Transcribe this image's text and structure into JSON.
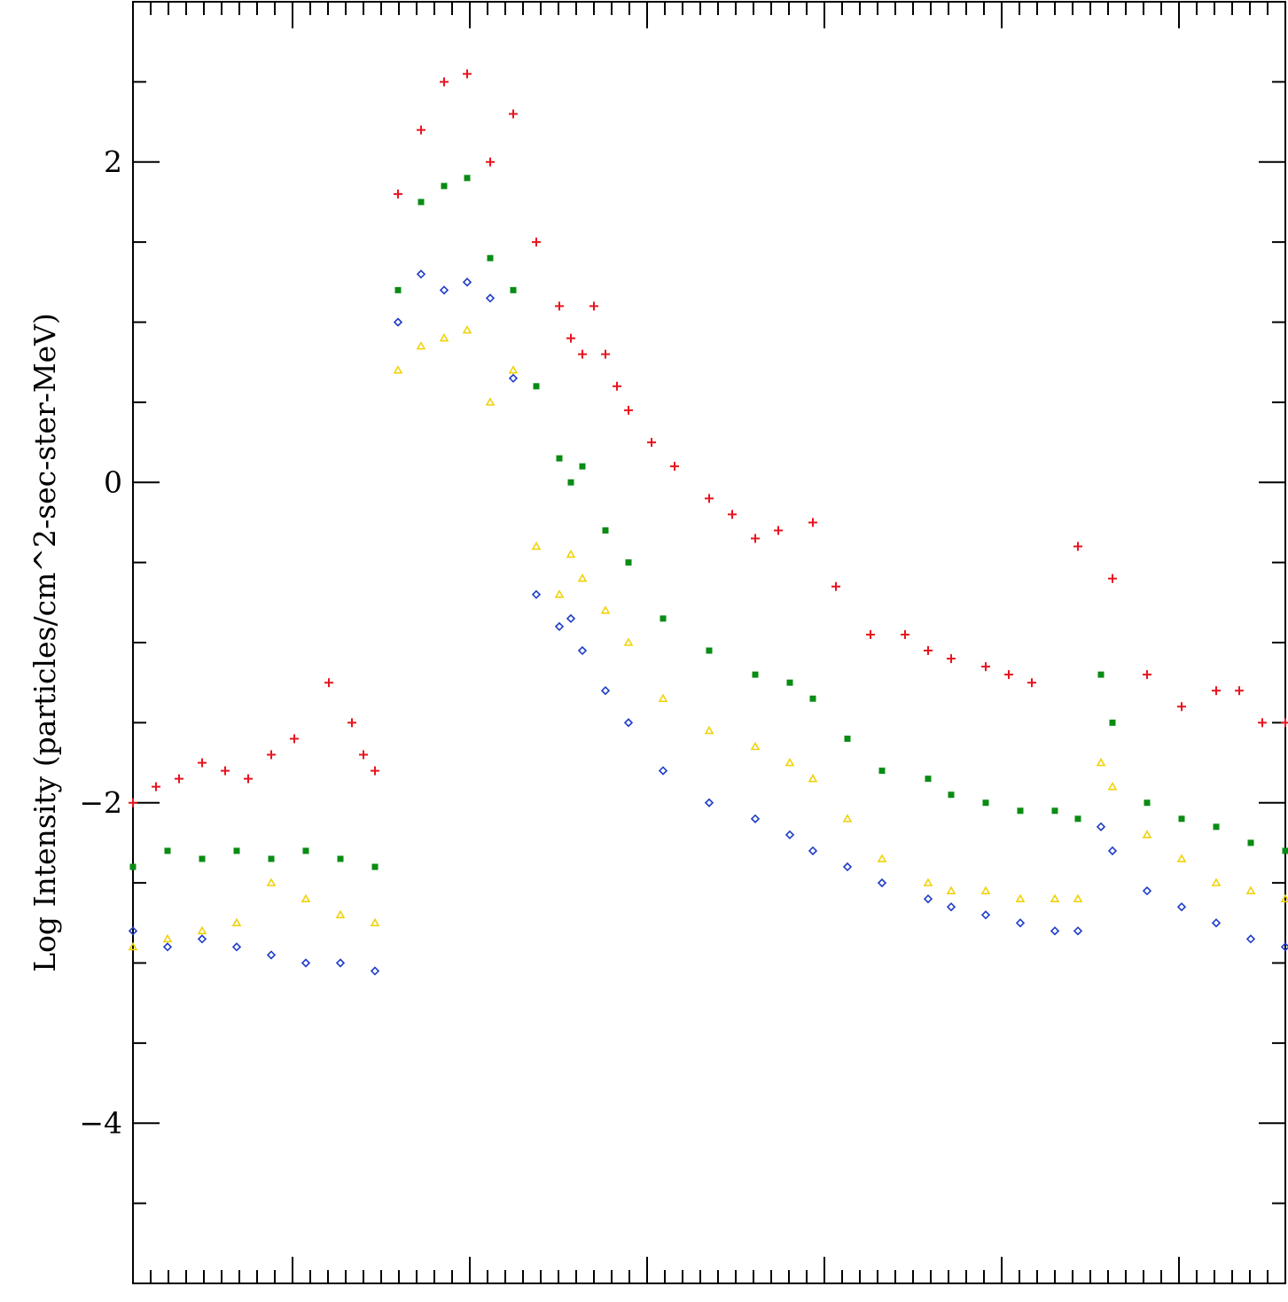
{
  "chart_data": {
    "type": "scatter",
    "ylabel": "Log Intensity (particles/cm^2-sec-ster-MeV)",
    "xlabel": "",
    "title": "",
    "ylim": [
      -5,
      3
    ],
    "xlim": [
      0,
      1
    ],
    "grid": false,
    "y_tick_labels": [
      {
        "value": 2,
        "label": "2"
      },
      {
        "value": 0,
        "label": "0"
      },
      {
        "value": -2,
        "label": "-2"
      },
      {
        "value": -4,
        "label": "-4"
      }
    ],
    "colors": {
      "series_1": "#e8141e",
      "series_2": "#0a8c14",
      "series_3": "#f0d20a",
      "series_4": "#1e3cc8"
    },
    "series": [
      {
        "key": "series_1",
        "marker": "plus",
        "x": [
          0.0,
          0.02,
          0.04,
          0.06,
          0.08,
          0.1,
          0.12,
          0.14,
          0.17,
          0.19,
          0.2,
          0.21,
          0.23,
          0.25,
          0.27,
          0.29,
          0.31,
          0.33,
          0.35,
          0.37,
          0.38,
          0.39,
          0.4,
          0.41,
          0.42,
          0.43,
          0.45,
          0.47,
          0.5,
          0.52,
          0.54,
          0.56,
          0.59,
          0.61,
          0.64,
          0.67,
          0.69,
          0.71,
          0.74,
          0.76,
          0.78,
          0.82,
          0.85,
          0.88,
          0.91,
          0.94,
          0.96,
          0.98,
          1.0
        ],
        "y": [
          -2.0,
          -1.9,
          -1.85,
          -1.75,
          -1.8,
          -1.85,
          -1.7,
          -1.6,
          -1.25,
          -1.5,
          -1.7,
          -1.8,
          1.8,
          2.2,
          2.5,
          2.55,
          2.0,
          2.3,
          1.5,
          1.1,
          0.9,
          0.8,
          1.1,
          0.8,
          0.6,
          0.45,
          0.25,
          0.1,
          -0.1,
          -0.2,
          -0.35,
          -0.3,
          -0.25,
          -0.65,
          -0.95,
          -0.95,
          -1.05,
          -1.1,
          -1.15,
          -1.2,
          -1.25,
          -0.4,
          -0.6,
          -1.2,
          -1.4,
          -1.3,
          -1.3,
          -1.5,
          -1.5
        ]
      },
      {
        "key": "series_2",
        "marker": "square",
        "x": [
          0.0,
          0.03,
          0.06,
          0.09,
          0.12,
          0.15,
          0.18,
          0.21,
          0.23,
          0.25,
          0.27,
          0.29,
          0.31,
          0.33,
          0.35,
          0.37,
          0.38,
          0.39,
          0.41,
          0.43,
          0.46,
          0.5,
          0.54,
          0.57,
          0.59,
          0.62,
          0.65,
          0.69,
          0.71,
          0.74,
          0.77,
          0.8,
          0.82,
          0.84,
          0.85,
          0.88,
          0.91,
          0.94,
          0.97,
          1.0
        ],
        "y": [
          -2.4,
          -2.3,
          -2.35,
          -2.3,
          -2.35,
          -2.3,
          -2.35,
          -2.4,
          1.2,
          1.75,
          1.85,
          1.9,
          1.4,
          1.2,
          0.6,
          0.15,
          0.0,
          0.1,
          -0.3,
          -0.5,
          -0.85,
          -1.05,
          -1.2,
          -1.25,
          -1.35,
          -1.6,
          -1.8,
          -1.85,
          -1.95,
          -2.0,
          -2.05,
          -2.05,
          -2.1,
          -1.2,
          -1.5,
          -2.0,
          -2.1,
          -2.15,
          -2.25,
          -2.3
        ]
      },
      {
        "key": "series_3",
        "marker": "triangle",
        "x": [
          0.0,
          0.03,
          0.06,
          0.09,
          0.12,
          0.15,
          0.18,
          0.21,
          0.23,
          0.25,
          0.27,
          0.29,
          0.31,
          0.33,
          0.35,
          0.37,
          0.38,
          0.39,
          0.41,
          0.43,
          0.46,
          0.5,
          0.54,
          0.57,
          0.59,
          0.62,
          0.65,
          0.69,
          0.71,
          0.74,
          0.77,
          0.8,
          0.82,
          0.84,
          0.85,
          0.88,
          0.91,
          0.94,
          0.97,
          1.0
        ],
        "y": [
          -2.9,
          -2.85,
          -2.8,
          -2.75,
          -2.5,
          -2.6,
          -2.7,
          -2.75,
          0.7,
          0.85,
          0.9,
          0.95,
          0.5,
          0.7,
          -0.4,
          -0.7,
          -0.45,
          -0.6,
          -0.8,
          -1.0,
          -1.35,
          -1.55,
          -1.65,
          -1.75,
          -1.85,
          -2.1,
          -2.35,
          -2.5,
          -2.55,
          -2.55,
          -2.6,
          -2.6,
          -2.6,
          -1.75,
          -1.9,
          -2.2,
          -2.35,
          -2.5,
          -2.55,
          -2.6
        ]
      },
      {
        "key": "series_4",
        "marker": "diamond",
        "x": [
          0.0,
          0.03,
          0.06,
          0.09,
          0.12,
          0.15,
          0.18,
          0.21,
          0.23,
          0.25,
          0.27,
          0.29,
          0.31,
          0.33,
          0.35,
          0.37,
          0.38,
          0.39,
          0.41,
          0.43,
          0.46,
          0.5,
          0.54,
          0.57,
          0.59,
          0.62,
          0.65,
          0.69,
          0.71,
          0.74,
          0.77,
          0.8,
          0.82,
          0.84,
          0.85,
          0.88,
          0.91,
          0.94,
          0.97,
          1.0
        ],
        "y": [
          -2.8,
          -2.9,
          -2.85,
          -2.9,
          -2.95,
          -3.0,
          -3.0,
          -3.05,
          1.0,
          1.3,
          1.2,
          1.25,
          1.15,
          0.65,
          -0.7,
          -0.9,
          -0.85,
          -1.05,
          -1.3,
          -1.5,
          -1.8,
          -2.0,
          -2.1,
          -2.2,
          -2.3,
          -2.4,
          -2.5,
          -2.6,
          -2.65,
          -2.7,
          -2.75,
          -2.8,
          -2.8,
          -2.15,
          -2.3,
          -2.55,
          -2.65,
          -2.75,
          -2.85,
          -2.9
        ]
      }
    ]
  }
}
